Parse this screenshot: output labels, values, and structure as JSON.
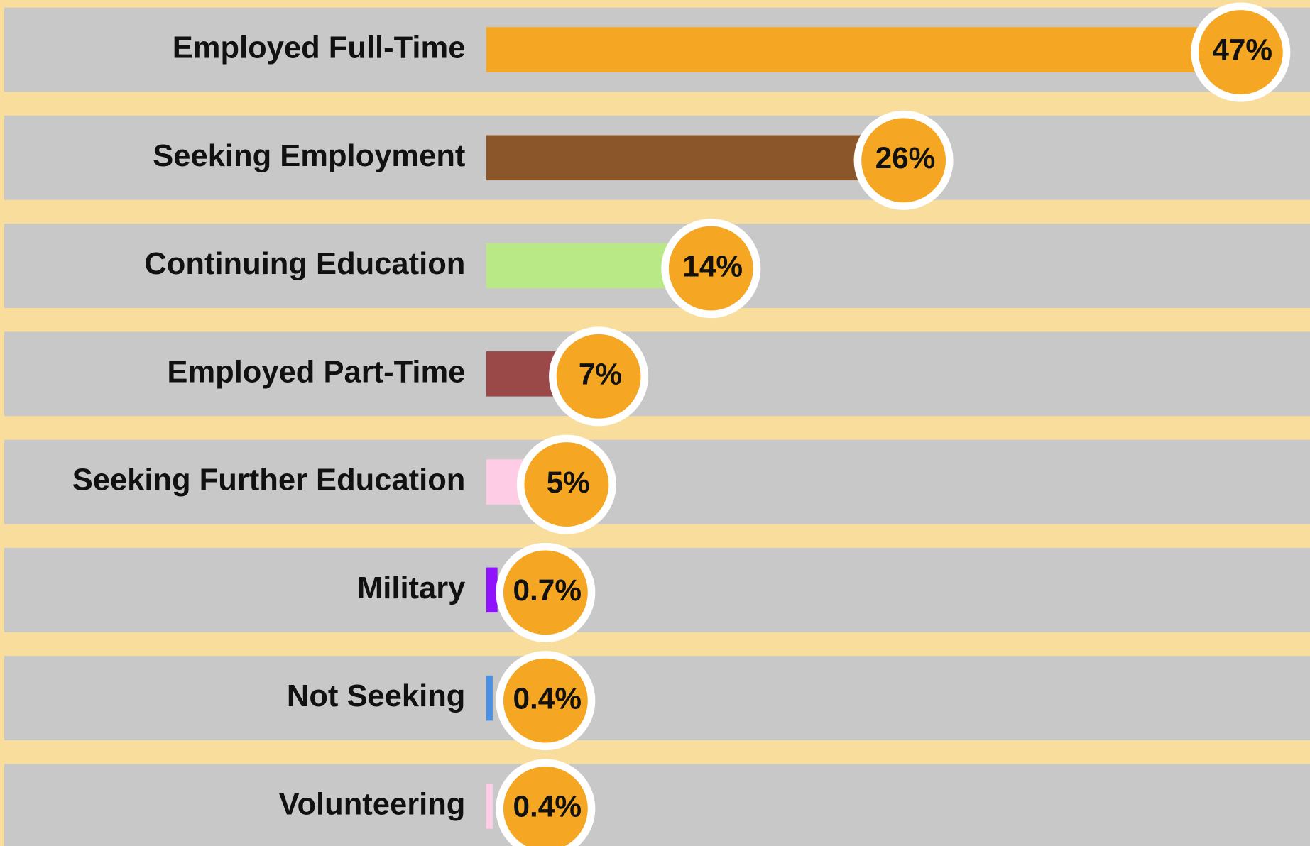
{
  "chart_data": {
    "type": "bar",
    "categories": [
      "Employed Full-Time",
      "Seeking Employment",
      "Continuing Education",
      "Employed Part-Time",
      "Seeking Further Education",
      "Military",
      "Not Seeking",
      "Volunteering"
    ],
    "values": [
      47,
      26,
      14,
      7,
      5,
      0.7,
      0.4,
      0.4
    ],
    "value_labels": [
      "47%",
      "26%",
      "14%",
      "7%",
      "5%",
      "0.7%",
      "0.4%",
      "0.4%"
    ],
    "colors": [
      "#f5a623",
      "#8b572a",
      "#b8e986",
      "#9b4848",
      "#ffcce6",
      "#9013fe",
      "#4a90e2",
      "#ffcce6"
    ],
    "badge_color": "#f5a623"
  }
}
